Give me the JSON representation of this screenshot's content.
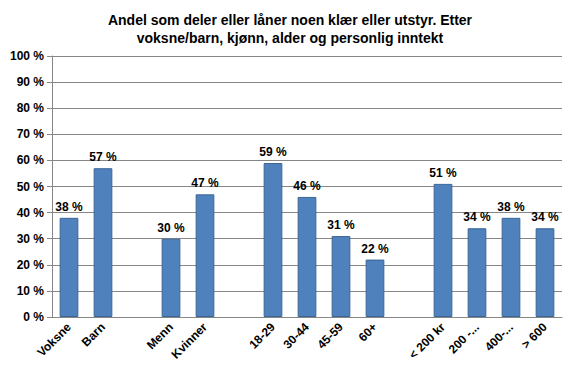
{
  "chart_data": {
    "type": "bar",
    "title": "Andel som deler eller låner noen klær eller utstyr. Etter\nvoksne/barn, kjønn, alder og personlig inntekt",
    "categories": [
      "Voksne",
      "Barn",
      null,
      "Menn",
      "Kvinner",
      null,
      "18-29",
      "30-44",
      "45-59",
      "60+",
      null,
      "< 200 kr",
      "200 -...",
      "400-...",
      "> 600"
    ],
    "values": [
      38,
      57,
      null,
      30,
      47,
      null,
      59,
      46,
      31,
      22,
      null,
      51,
      34,
      38,
      34
    ],
    "value_labels": [
      "38 %",
      "57 %",
      null,
      "30 %",
      "47 %",
      null,
      "59 %",
      "46 %",
      "31 %",
      "22 %",
      null,
      "51 %",
      "34 %",
      "38 %",
      "34 %"
    ],
    "color": "#4f81bd",
    "ylim": [
      0,
      100
    ],
    "yticks": [
      {
        "value": 0,
        "label": "0 %"
      },
      {
        "value": 10,
        "label": "10 %"
      },
      {
        "value": 20,
        "label": "20 %"
      },
      {
        "value": 30,
        "label": "30 %"
      },
      {
        "value": 40,
        "label": "40 %"
      },
      {
        "value": 50,
        "label": "50 %"
      },
      {
        "value": 60,
        "label": "60 %"
      },
      {
        "value": 70,
        "label": "70 %"
      },
      {
        "value": 80,
        "label": "80 %"
      },
      {
        "value": 90,
        "label": "90 %"
      },
      {
        "value": 100,
        "label": "100 %"
      }
    ],
    "grid": true,
    "data_labels": true
  }
}
